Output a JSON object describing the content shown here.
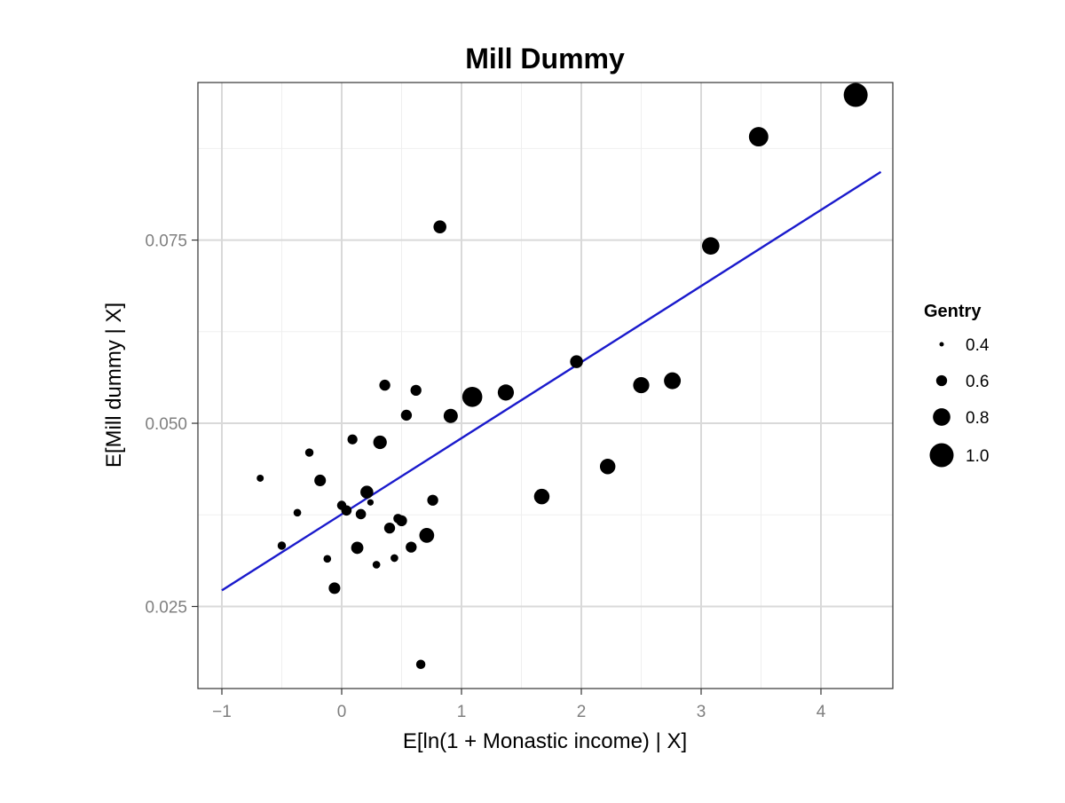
{
  "chart_data": {
    "type": "scatter",
    "title": "Mill Dummy",
    "xlabel": "E[ln(1 + Monastic income) | X]",
    "ylabel": "E[Mill dummy | X]",
    "xlim": [
      -1.2,
      4.6
    ],
    "ylim": [
      0.0138,
      0.0965
    ],
    "x_ticks": [
      -1,
      0,
      1,
      2,
      3,
      4
    ],
    "x_tick_labels": [
      "−1",
      "0",
      "1",
      "2",
      "3",
      "4"
    ],
    "y_ticks": [
      0.025,
      0.05,
      0.075
    ],
    "y_tick_labels": [
      "0.025",
      "0.050",
      "0.075"
    ],
    "grid": true,
    "legend_position": "right",
    "legend": {
      "title": "Gentry",
      "entries": [
        {
          "label": "0.4",
          "value": 0.4
        },
        {
          "label": "0.6",
          "value": 0.6
        },
        {
          "label": "0.8",
          "value": 0.8
        },
        {
          "label": "1.0",
          "value": 1.0
        }
      ]
    },
    "fit_line": {
      "color": "#1a1acc",
      "x": [
        -1.0,
        4.5
      ],
      "y": [
        0.0272,
        0.0843
      ]
    },
    "point_color": "#000000",
    "points": [
      {
        "x": -0.68,
        "y": 0.0425,
        "gentry": 0.48
      },
      {
        "x": -0.5,
        "y": 0.0333,
        "gentry": 0.52
      },
      {
        "x": -0.37,
        "y": 0.0378,
        "gentry": 0.5
      },
      {
        "x": -0.27,
        "y": 0.046,
        "gentry": 0.52
      },
      {
        "x": -0.18,
        "y": 0.0422,
        "gentry": 0.62
      },
      {
        "x": -0.12,
        "y": 0.0315,
        "gentry": 0.5
      },
      {
        "x": -0.06,
        "y": 0.0275,
        "gentry": 0.62
      },
      {
        "x": 0.0,
        "y": 0.0388,
        "gentry": 0.55
      },
      {
        "x": 0.04,
        "y": 0.0381,
        "gentry": 0.58
      },
      {
        "x": 0.09,
        "y": 0.0478,
        "gentry": 0.57
      },
      {
        "x": 0.13,
        "y": 0.033,
        "gentry": 0.64
      },
      {
        "x": 0.16,
        "y": 0.0376,
        "gentry": 0.58
      },
      {
        "x": 0.21,
        "y": 0.0406,
        "gentry": 0.66
      },
      {
        "x": 0.24,
        "y": 0.0392,
        "gentry": 0.46
      },
      {
        "x": 0.29,
        "y": 0.0307,
        "gentry": 0.5
      },
      {
        "x": 0.32,
        "y": 0.0474,
        "gentry": 0.68
      },
      {
        "x": 0.36,
        "y": 0.0552,
        "gentry": 0.6
      },
      {
        "x": 0.4,
        "y": 0.0357,
        "gentry": 0.6
      },
      {
        "x": 0.44,
        "y": 0.0316,
        "gentry": 0.5
      },
      {
        "x": 0.47,
        "y": 0.037,
        "gentry": 0.55
      },
      {
        "x": 0.5,
        "y": 0.0367,
        "gentry": 0.6
      },
      {
        "x": 0.54,
        "y": 0.0511,
        "gentry": 0.6
      },
      {
        "x": 0.58,
        "y": 0.0331,
        "gentry": 0.6
      },
      {
        "x": 0.62,
        "y": 0.0545,
        "gentry": 0.6
      },
      {
        "x": 0.66,
        "y": 0.0171,
        "gentry": 0.55
      },
      {
        "x": 0.71,
        "y": 0.0347,
        "gentry": 0.72
      },
      {
        "x": 0.76,
        "y": 0.0395,
        "gentry": 0.6
      },
      {
        "x": 0.82,
        "y": 0.0768,
        "gentry": 0.66
      },
      {
        "x": 0.91,
        "y": 0.051,
        "gentry": 0.7
      },
      {
        "x": 1.09,
        "y": 0.0536,
        "gentry": 0.88
      },
      {
        "x": 1.37,
        "y": 0.0542,
        "gentry": 0.76
      },
      {
        "x": 1.67,
        "y": 0.04,
        "gentry": 0.74
      },
      {
        "x": 1.96,
        "y": 0.0584,
        "gentry": 0.66
      },
      {
        "x": 2.22,
        "y": 0.0441,
        "gentry": 0.74
      },
      {
        "x": 2.5,
        "y": 0.0552,
        "gentry": 0.76
      },
      {
        "x": 2.76,
        "y": 0.0558,
        "gentry": 0.78
      },
      {
        "x": 3.08,
        "y": 0.0742,
        "gentry": 0.8
      },
      {
        "x": 3.48,
        "y": 0.0891,
        "gentry": 0.86
      },
      {
        "x": 4.29,
        "y": 0.0948,
        "gentry": 1.0
      }
    ]
  }
}
